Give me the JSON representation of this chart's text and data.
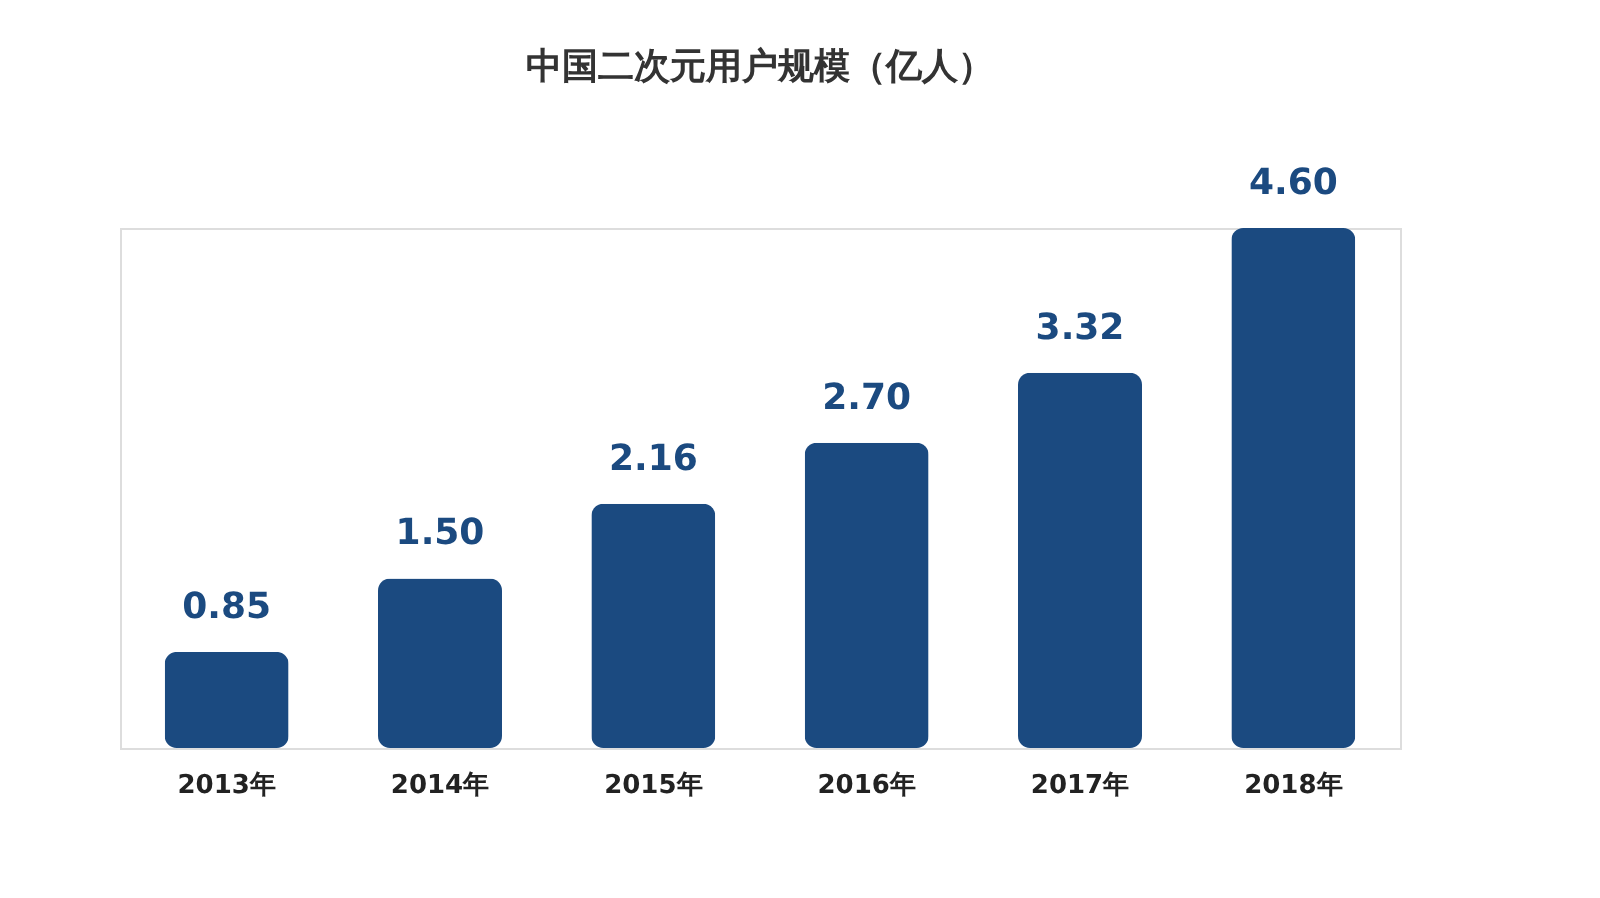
{
  "chart_data": {
    "type": "bar",
    "title": "中国二次元用户规模（亿人）",
    "categories": [
      "2013年",
      "2014年",
      "2015年",
      "2016年",
      "2017年",
      "2018年"
    ],
    "values": [
      0.85,
      1.5,
      2.16,
      2.7,
      3.32,
      4.6
    ],
    "value_labels": [
      "0.85",
      "1.50",
      "2.16",
      "2.70",
      "3.32",
      "4.60"
    ],
    "color": "#1b4a80",
    "grid": false
  }
}
